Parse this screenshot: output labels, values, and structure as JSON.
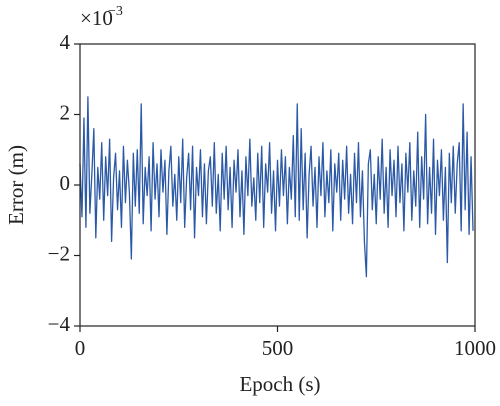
{
  "chart_data": {
    "type": "line",
    "x_label": "Epoch (s)",
    "y_label": "Error (m)",
    "y_offset_base": "×10",
    "y_offset_exponent": "−3",
    "color": "#2b59a6",
    "xlim": [
      0,
      1000
    ],
    "xticks": [
      0,
      500,
      1000
    ],
    "ylim": [
      -4,
      4
    ],
    "yticks": [
      {
        "value": -4,
        "label": "−4"
      },
      {
        "value": -2,
        "label": "−2"
      },
      0,
      2,
      4
    ],
    "x": [
      0,
      5,
      10,
      15,
      20,
      25,
      30,
      35,
      40,
      45,
      50,
      55,
      60,
      65,
      70,
      75,
      80,
      85,
      90,
      95,
      100,
      105,
      110,
      115,
      120,
      125,
      130,
      135,
      140,
      145,
      150,
      155,
      160,
      165,
      170,
      175,
      180,
      185,
      190,
      195,
      200,
      205,
      210,
      215,
      220,
      225,
      230,
      235,
      240,
      245,
      250,
      255,
      260,
      265,
      270,
      275,
      280,
      285,
      290,
      295,
      300,
      305,
      310,
      315,
      320,
      325,
      330,
      335,
      340,
      345,
      350,
      355,
      360,
      365,
      370,
      375,
      380,
      385,
      390,
      395,
      400,
      405,
      410,
      415,
      420,
      425,
      430,
      435,
      440,
      445,
      450,
      455,
      460,
      465,
      470,
      475,
      480,
      485,
      490,
      495,
      500,
      505,
      510,
      515,
      520,
      525,
      530,
      535,
      540,
      545,
      550,
      555,
      560,
      565,
      570,
      575,
      580,
      585,
      590,
      595,
      600,
      605,
      610,
      615,
      620,
      625,
      630,
      635,
      640,
      645,
      650,
      655,
      660,
      665,
      670,
      675,
      680,
      685,
      690,
      695,
      700,
      705,
      710,
      715,
      720,
      725,
      730,
      735,
      740,
      745,
      750,
      755,
      760,
      765,
      770,
      775,
      780,
      785,
      790,
      795,
      800,
      805,
      810,
      815,
      820,
      825,
      830,
      835,
      840,
      845,
      850,
      855,
      860,
      865,
      870,
      875,
      880,
      885,
      890,
      895,
      900,
      905,
      910,
      915,
      920,
      925,
      930,
      935,
      940,
      945,
      950,
      955,
      960,
      965,
      970,
      975,
      980,
      985,
      990,
      995
    ],
    "values": [
      0.6,
      -0.9,
      1.9,
      -1.2,
      2.5,
      -0.8,
      0.3,
      1.6,
      -1.5,
      0.5,
      -0.4,
      1.2,
      -1.0,
      0.8,
      -0.3,
      1.3,
      -1.6,
      0.2,
      0.9,
      -0.7,
      0.4,
      -1.2,
      1.1,
      -0.5,
      0.7,
      -0.2,
      -2.1,
      0.9,
      -0.6,
      1.0,
      -0.8,
      2.3,
      -1.1,
      0.5,
      -0.3,
      0.8,
      -1.3,
      1.2,
      -0.4,
      0.6,
      -0.9,
      1.0,
      -0.2,
      0.7,
      -1.4,
      0.4,
      1.1,
      -0.6,
      0.3,
      -1.0,
      0.8,
      -0.5,
      1.3,
      -1.2,
      0.2,
      0.9,
      -0.7,
      1.1,
      -1.5,
      0.5,
      -0.3,
      1.0,
      -0.9,
      0.6,
      -1.1,
      0.4,
      0.8,
      -0.6,
      1.2,
      -0.8,
      0.3,
      -1.3,
      0.9,
      -0.4,
      1.1,
      -0.7,
      0.5,
      -1.2,
      0.7,
      -0.2,
      1.0,
      -0.9,
      0.4,
      -1.4,
      0.8,
      -0.3,
      1.3,
      -0.6,
      0.2,
      -1.0,
      0.9,
      -0.5,
      1.1,
      -1.2,
      0.6,
      -0.2,
      1.2,
      -0.8,
      0.4,
      -1.3,
      0.7,
      -0.6,
      1.0,
      -0.3,
      0.8,
      -1.1,
      0.5,
      -0.4,
      1.4,
      -0.9,
      2.3,
      -1.0,
      1.6,
      -0.7,
      0.9,
      -1.5,
      0.3,
      1.1,
      -0.6,
      0.5,
      -1.2,
      0.8,
      -0.3,
      1.2,
      -0.9,
      0.4,
      -0.5,
      1.0,
      -1.3,
      0.6,
      -0.2,
      0.9,
      -1.0,
      0.7,
      -0.4,
      1.1,
      -0.8,
      0.3,
      -1.1,
      0.9,
      -0.5,
      1.2,
      -0.9,
      0.4,
      -1.6,
      -2.6,
      0.6,
      1.0,
      -0.7,
      0.3,
      -1.1,
      0.8,
      -0.4,
      1.3,
      -0.8,
      0.5,
      -1.2,
      1.0,
      -0.3,
      0.7,
      -0.9,
      1.1,
      -0.5,
      0.6,
      -1.3,
      0.9,
      -0.2,
      1.2,
      -1.0,
      0.4,
      -0.6,
      1.5,
      -1.2,
      0.8,
      -0.4,
      2.0,
      -1.1,
      0.5,
      -0.8,
      1.3,
      -1.4,
      0.7,
      -0.3,
      1.0,
      -1.0,
      0.5,
      -2.2,
      0.9,
      -0.5,
      1.1,
      -0.8,
      0.6,
      1.2,
      -1.3,
      2.3,
      -0.7,
      1.5,
      -1.4,
      0.8,
      -1.3
    ]
  }
}
